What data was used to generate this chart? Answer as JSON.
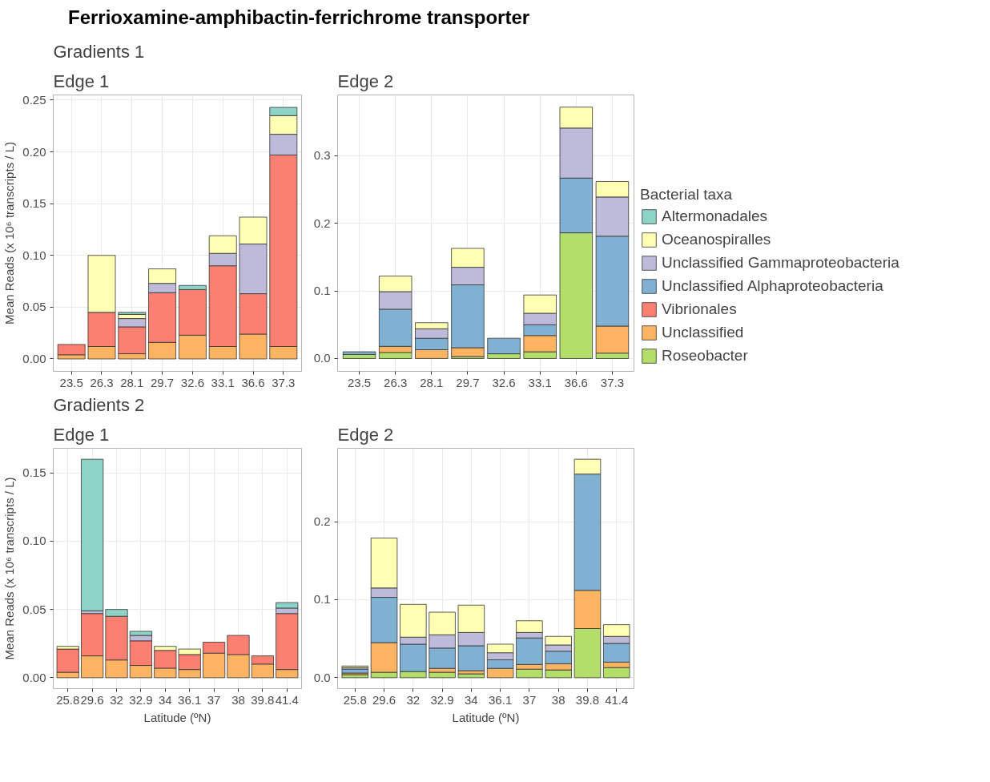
{
  "chart_data": [
    {
      "type": "bar",
      "stacked": true,
      "title": "Gradients 1",
      "subtitle": "Edge 1",
      "annotations": [
        "Ferrioxamine-amphibactin-ferrichrome transporter"
      ],
      "ylabel": "Mean Reads (x 10⁶ transcripts / L)",
      "categories": [
        "23.5",
        "26.3",
        "28.1",
        "29.7",
        "32.6",
        "33.1",
        "36.6",
        "37.3"
      ],
      "ylim": [
        -0.012,
        0.255
      ],
      "yticks": [
        {
          "value": 0,
          "label": "0.00"
        },
        {
          "value": 0.05,
          "label": "0.05"
        },
        {
          "value": 0.1,
          "label": "0.10"
        },
        {
          "value": 0.15,
          "label": "0.15"
        },
        {
          "value": 0.2,
          "label": "0.20"
        },
        {
          "value": 0.25,
          "label": "0.25"
        }
      ],
      "grid": true,
      "legend": false,
      "series": [
        {
          "color": "#b3de69",
          "values": [
            null,
            null,
            null,
            null,
            null,
            null,
            null,
            null
          ]
        },
        {
          "color": "#fdb462",
          "values": [
            0.004,
            0.012,
            0.005,
            0.016,
            0.023,
            0.012,
            0.024,
            0.012
          ]
        },
        {
          "color": "#fb8072",
          "values": [
            0.01,
            0.033,
            0.026,
            0.048,
            0.044,
            0.078,
            0.039,
            0.185
          ]
        },
        {
          "color": "#80b1d3",
          "values": [
            null,
            null,
            null,
            null,
            null,
            null,
            null,
            null
          ]
        },
        {
          "color": "#bebada",
          "values": [
            null,
            null,
            0.008,
            0.009,
            null,
            0.012,
            0.048,
            0.02
          ]
        },
        {
          "color": "#ffffb3",
          "values": [
            null,
            0.055,
            0.004,
            0.014,
            null,
            0.017,
            0.026,
            0.018
          ]
        },
        {
          "color": "#8dd3c7",
          "values": [
            null,
            null,
            0.002,
            null,
            0.004,
            null,
            null,
            0.008
          ]
        }
      ]
    },
    {
      "type": "bar",
      "stacked": true,
      "title": "Edge 2",
      "legend_title": "Bacterial taxa",
      "legend": "right",
      "categories": [
        "23.5",
        "26.3",
        "28.1",
        "29.7",
        "32.6",
        "33.1",
        "36.6",
        "37.3"
      ],
      "ylim": [
        -0.019,
        0.39
      ],
      "yticks": [
        {
          "value": 0,
          "label": "0.0"
        },
        {
          "value": 0.1,
          "label": "0.1"
        },
        {
          "value": 0.2,
          "label": "0.2"
        },
        {
          "value": 0.3,
          "label": "0.3"
        }
      ],
      "grid": true,
      "series": [
        {
          "name": "Roseobacter",
          "color": "#b3de69",
          "values": [
            0.006,
            0.009,
            null,
            0.003,
            0.007,
            0.01,
            0.186,
            0.008
          ]
        },
        {
          "name": "Unclassified",
          "color": "#fdb462",
          "values": [
            null,
            0.009,
            0.013,
            0.013,
            null,
            0.024,
            null,
            0.04
          ]
        },
        {
          "name": "Vibrionales",
          "color": "#fb8072",
          "values": [
            null,
            null,
            null,
            null,
            null,
            null,
            null,
            null
          ]
        },
        {
          "name": "Unclassified Alphaproteobacteria",
          "color": "#80b1d3",
          "values": [
            0.004,
            0.055,
            0.017,
            0.093,
            0.023,
            0.016,
            0.081,
            0.133
          ]
        },
        {
          "name": "Unclassified Gammaproteobacteria",
          "color": "#bebada",
          "values": [
            null,
            0.026,
            0.014,
            0.026,
            null,
            0.017,
            0.074,
            0.058
          ]
        },
        {
          "name": "Oceanospiralles",
          "color": "#ffffb3",
          "values": [
            null,
            0.023,
            0.009,
            0.028,
            null,
            0.027,
            0.031,
            0.023
          ]
        },
        {
          "name": "Altermonadales",
          "color": "#8dd3c7",
          "values": [
            null,
            null,
            null,
            null,
            null,
            null,
            null,
            null
          ]
        }
      ]
    },
    {
      "type": "bar",
      "stacked": true,
      "title": "Gradients 2",
      "subtitle": "Edge 1",
      "ylabel": "Mean Reads (x 10⁶ transcripts / L)",
      "xlabel": "Latitude (ºN)",
      "categories": [
        "25.8",
        "29.6",
        "32",
        "32.9",
        "34",
        "36.1",
        "37",
        "38",
        "39.8",
        "41.4"
      ],
      "ylim": [
        -0.008,
        0.168
      ],
      "yticks": [
        {
          "value": 0,
          "label": "0.00"
        },
        {
          "value": 0.05,
          "label": "0.05"
        },
        {
          "value": 0.1,
          "label": "0.10"
        },
        {
          "value": 0.15,
          "label": "0.15"
        }
      ],
      "grid": true,
      "legend": false,
      "series": [
        {
          "color": "#b3de69",
          "values": [
            null,
            null,
            null,
            null,
            null,
            null,
            null,
            null,
            null,
            null
          ]
        },
        {
          "color": "#fdb462",
          "values": [
            0.004,
            0.016,
            0.013,
            0.009,
            0.007,
            0.006,
            0.018,
            0.017,
            0.01,
            0.006
          ]
        },
        {
          "color": "#fb8072",
          "values": [
            0.017,
            0.031,
            0.032,
            0.018,
            0.013,
            0.011,
            0.008,
            0.014,
            0.006,
            0.041
          ]
        },
        {
          "color": "#80b1d3",
          "values": [
            null,
            null,
            null,
            null,
            null,
            null,
            null,
            null,
            null,
            null
          ]
        },
        {
          "color": "#bebada",
          "values": [
            null,
            0.002,
            null,
            0.004,
            null,
            null,
            null,
            null,
            null,
            0.004
          ]
        },
        {
          "color": "#ffffb3",
          "values": [
            0.002,
            null,
            null,
            null,
            0.003,
            0.004,
            null,
            null,
            null,
            null
          ]
        },
        {
          "color": "#8dd3c7",
          "values": [
            null,
            0.111,
            0.005,
            0.003,
            null,
            null,
            null,
            null,
            null,
            0.004
          ]
        }
      ]
    },
    {
      "type": "bar",
      "stacked": true,
      "title": "Edge 2",
      "xlabel": "Latitude (ºN)",
      "categories": [
        "25.8",
        "29.6",
        "32",
        "32.9",
        "34",
        "36.1",
        "37",
        "38",
        "39.8",
        "41.4"
      ],
      "ylim": [
        -0.014,
        0.294
      ],
      "yticks": [
        {
          "value": 0,
          "label": "0.0"
        },
        {
          "value": 0.1,
          "label": "0.1"
        },
        {
          "value": 0.2,
          "label": "0.2"
        }
      ],
      "grid": true,
      "legend": false,
      "series": [
        {
          "color": "#b3de69",
          "values": [
            0.004,
            0.007,
            0.008,
            0.007,
            0.005,
            null,
            0.011,
            0.01,
            0.063,
            0.013
          ]
        },
        {
          "color": "#fdb462",
          "values": [
            0.002,
            0.038,
            null,
            0.005,
            0.004,
            0.012,
            0.006,
            0.008,
            0.049,
            0.007
          ]
        },
        {
          "color": "#fb8072",
          "values": [
            null,
            null,
            null,
            null,
            null,
            null,
            null,
            null,
            null,
            null
          ]
        },
        {
          "color": "#80b1d3",
          "values": [
            0.005,
            0.058,
            0.035,
            0.026,
            0.032,
            0.011,
            0.034,
            0.016,
            0.149,
            0.024
          ]
        },
        {
          "color": "#bebada",
          "values": [
            0.002,
            0.012,
            0.009,
            0.017,
            0.017,
            0.009,
            0.007,
            0.008,
            null,
            0.009
          ]
        },
        {
          "color": "#ffffb3",
          "values": [
            0.002,
            0.064,
            0.042,
            0.029,
            0.035,
            0.011,
            0.015,
            0.011,
            0.019,
            0.015
          ]
        },
        {
          "color": "#8dd3c7",
          "values": [
            null,
            null,
            null,
            null,
            null,
            null,
            null,
            null,
            null,
            null
          ]
        }
      ]
    }
  ]
}
